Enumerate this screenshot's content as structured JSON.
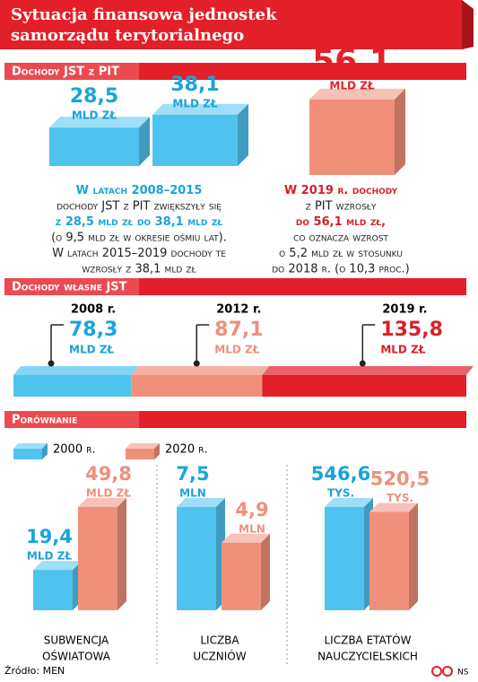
{
  "title_lines": [
    "Sytuacja finansowa jednostek",
    "samorządu terytorialnego"
  ],
  "chart_data": [
    {
      "type": "bar3d",
      "title": "Dochody JST z PIT",
      "categories": [
        null,
        null,
        null
      ],
      "values": [
        28.5,
        38.1,
        56.1
      ],
      "value_labels": [
        "28,5",
        "38,1",
        "56,1"
      ],
      "unit_label": "MLD ZŁ",
      "colors": [
        "#4fc3ef",
        "#4fc3ef",
        "#f0907a"
      ],
      "notes": [
        {
          "color": "#1aa3dc",
          "lines": [
            [
              {
                "text": "W latach 2008–2015",
                "bold": true
              }
            ],
            [
              {
                "text": "dochody JST z PIT zwiększyły się",
                "bold": false
              }
            ],
            [
              {
                "text": "z 28,5 mld zł do 38,1 mld zł",
                "bold": true
              }
            ],
            [
              {
                "text": "(o 9,5 mld zł w okresie ośmiu lat).",
                "bold": false
              }
            ],
            [
              {
                "text": "W latach 2015–2019 dochody te",
                "bold": false
              }
            ],
            [
              {
                "text": "wzrosły z 38,1 mld zł",
                "bold": false
              }
            ]
          ]
        },
        {
          "color": "#d9202a",
          "lines": [
            [
              {
                "text": "W 2019 r. dochody",
                "bold": true
              }
            ],
            [
              {
                "text": "z PIT wzrosły",
                "bold": false
              }
            ],
            [
              {
                "text": "do 56,1 mld zł,",
                "bold": true
              }
            ],
            [
              {
                "text": "co oznacza wzrost",
                "bold": false
              }
            ],
            [
              {
                "text": "o 5,2 mld zł w stosunku",
                "bold": false
              }
            ],
            [
              {
                "text": "do 2018 r. (o 10,3 proc.)",
                "bold": false
              }
            ]
          ]
        }
      ]
    },
    {
      "type": "stacked_hbar",
      "title": "Dochody własne JST",
      "categories": [
        "2008 r.",
        "2012 r.",
        "2019 r."
      ],
      "values": [
        78.3,
        87.1,
        135.8
      ],
      "value_labels": [
        "78,3",
        "87,1",
        "135,8"
      ],
      "unit_label": "MLD ZŁ",
      "colors": [
        "#4fc3ef",
        "#f0907a",
        "#e3202a"
      ]
    },
    {
      "type": "grouped_bar3d",
      "title": "Porównanie",
      "categories": [
        [
          "SUBWENCJA",
          "OŚWIATOWA"
        ],
        [
          "LICZBA",
          "UCZNIÓW"
        ],
        [
          "LICZBA ETATÓW",
          "NAUCZYCIELSKICH"
        ]
      ],
      "units": [
        "MLD ZŁ",
        "MLN",
        "TYS."
      ],
      "series": [
        {
          "name": "2000 r.",
          "color": "#4fc3ef",
          "values": [
            19.4,
            7.5,
            546.6
          ],
          "value_labels": [
            "19,4",
            "7,5",
            "546,6"
          ]
        },
        {
          "name": "2020 r.",
          "color": "#f0907a",
          "values": [
            49.8,
            4.9,
            520.5
          ],
          "value_labels": [
            "49,8",
            "4,9",
            "520,5"
          ]
        }
      ]
    }
  ],
  "source": "Źródło: MEN",
  "credit": "NS"
}
